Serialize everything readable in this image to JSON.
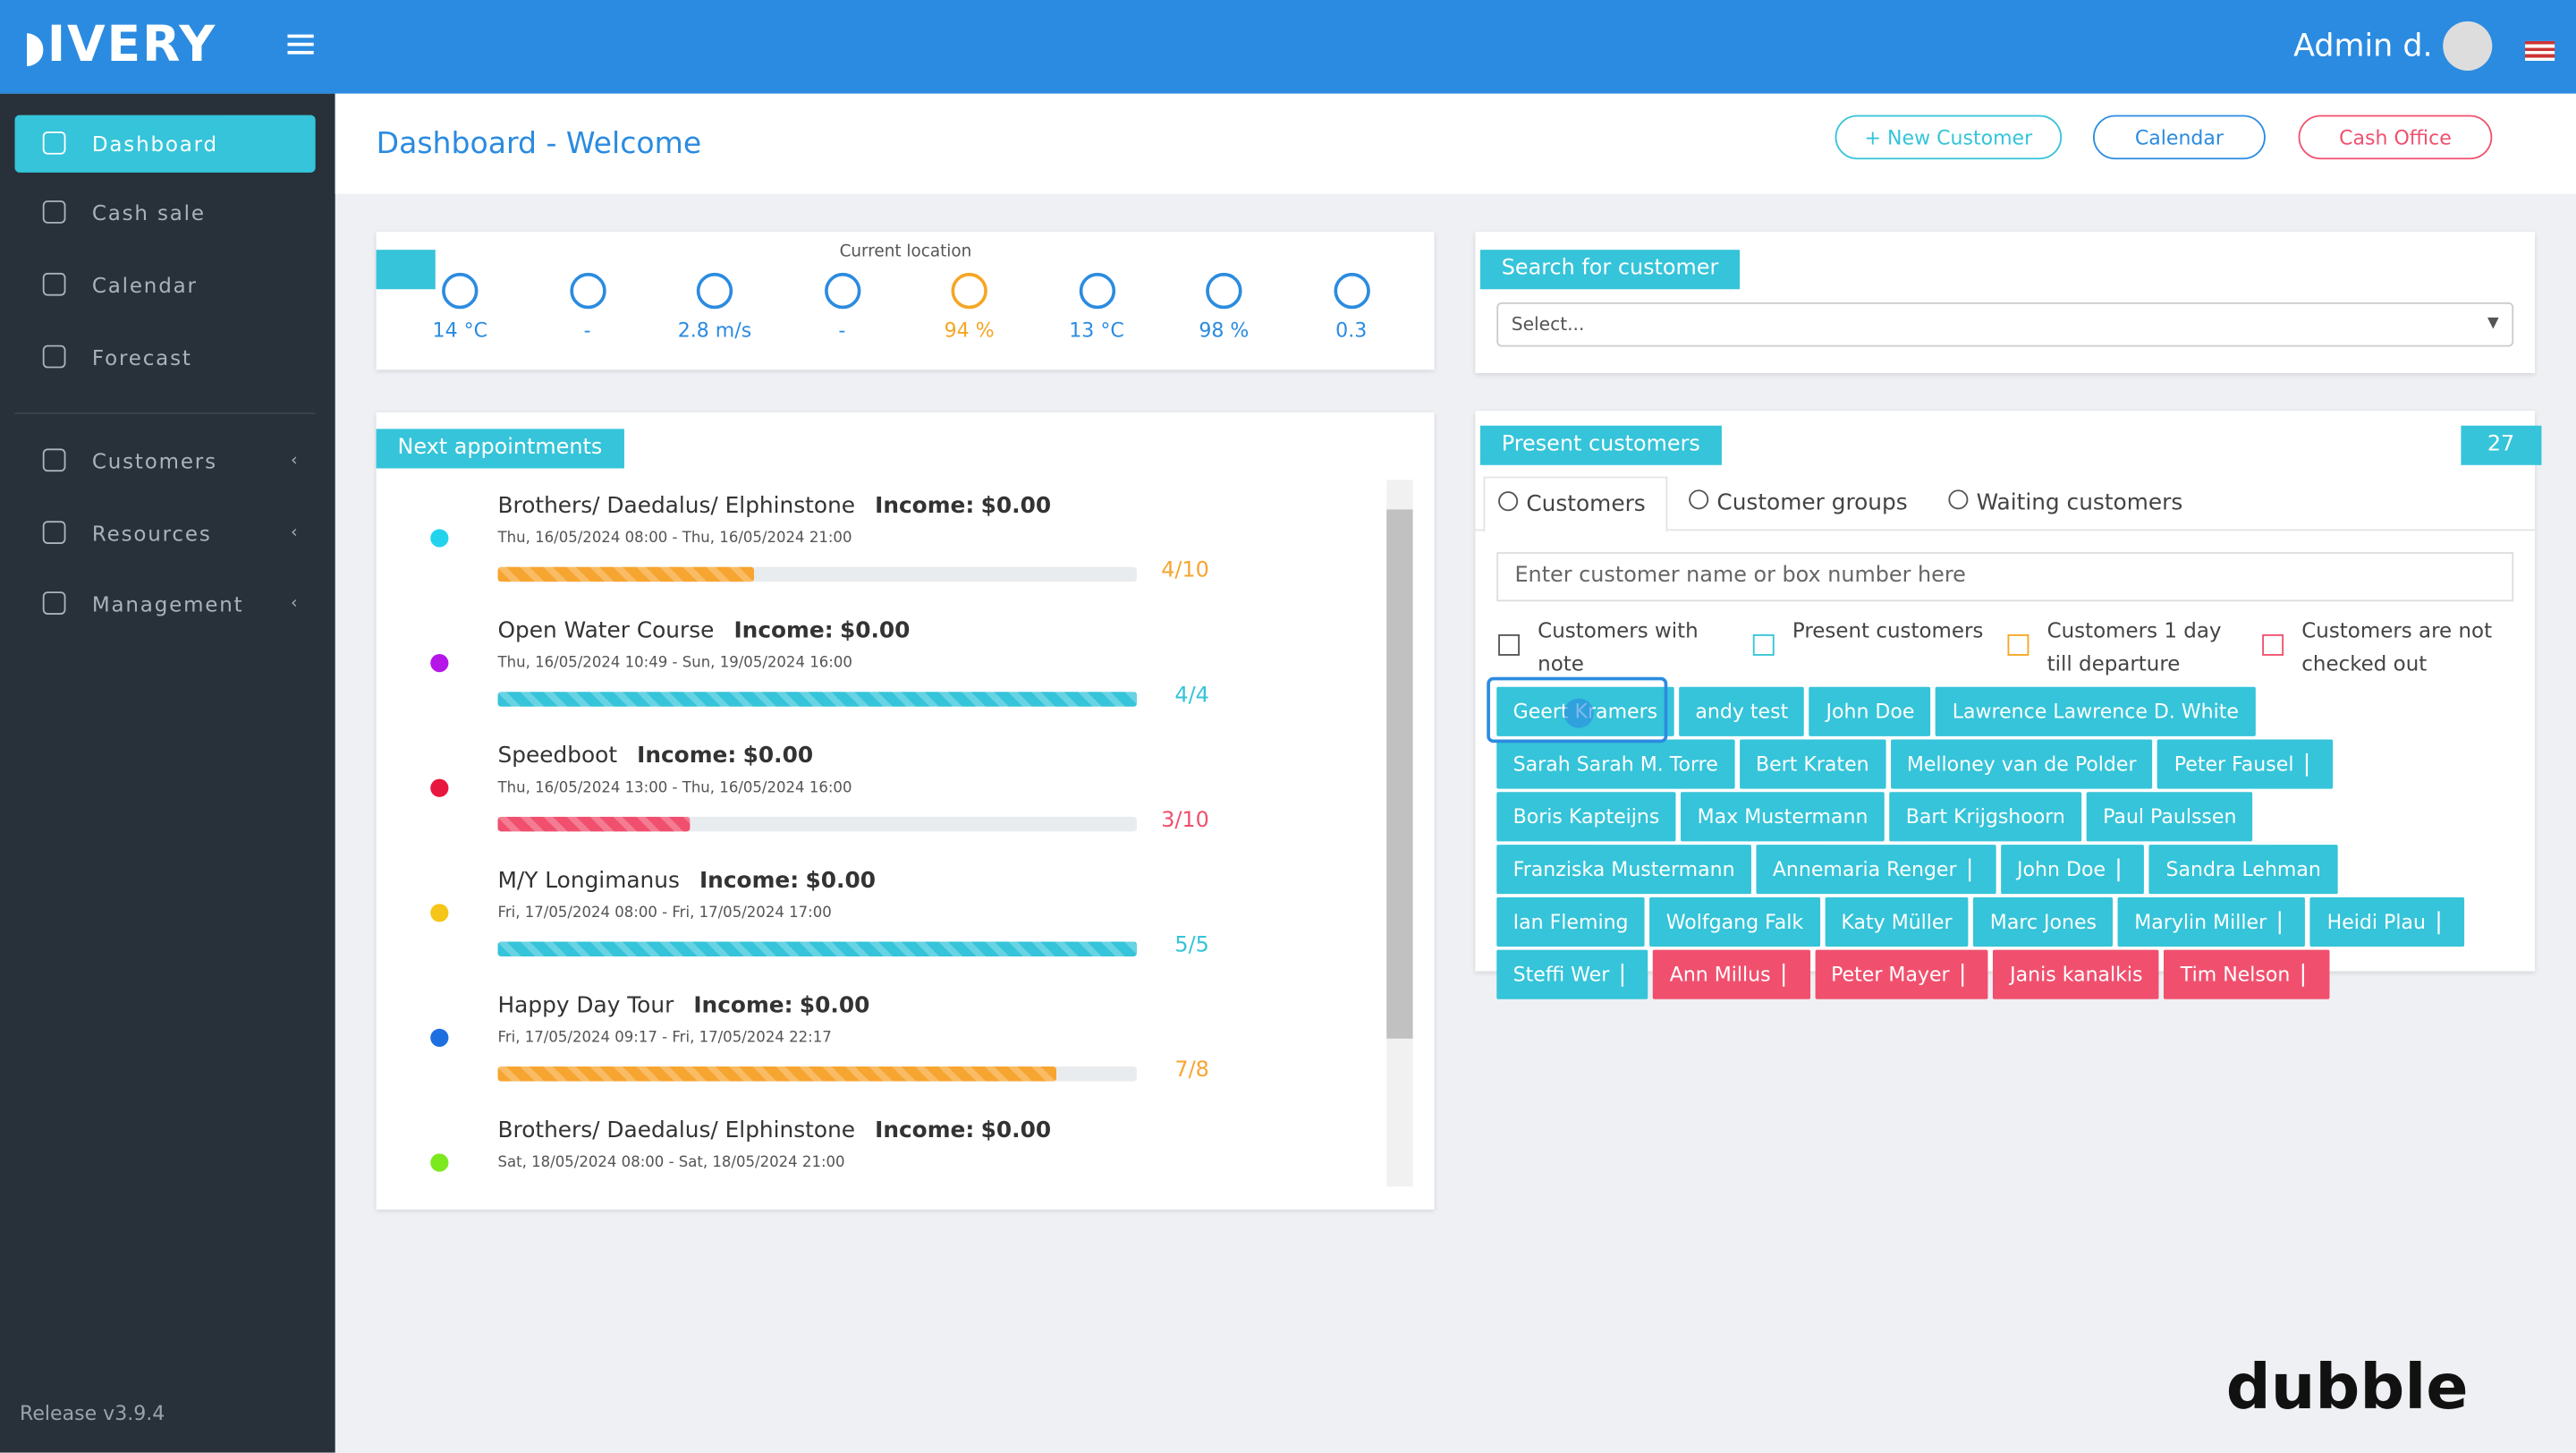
{
  "header": {
    "brand": "IVERY",
    "user": "Admin d."
  },
  "sidebar": {
    "items": [
      {
        "label": "Dashboard",
        "active": true
      },
      {
        "label": "Cash sale"
      },
      {
        "label": "Calendar"
      },
      {
        "label": "Forecast"
      },
      {
        "label": "Customers",
        "submenu": true
      },
      {
        "label": "Resources",
        "submenu": true
      },
      {
        "label": "Management",
        "submenu": true
      }
    ],
    "release": "Release v3.9.4"
  },
  "page": {
    "title": "Dashboard - Welcome",
    "buttons": [
      {
        "label": "+ New Customer",
        "color": "#35c4d9"
      },
      {
        "label": "Calendar",
        "color": "#2b8be0"
      },
      {
        "label": "Cash Office",
        "color": "#f0506e"
      }
    ]
  },
  "weather": {
    "caption": "Current location",
    "items": [
      {
        "text": "14 °C",
        "color": "#2b8be0"
      },
      {
        "text": "-",
        "color": "#2b8be0"
      },
      {
        "text": "2.8 m/s",
        "color": "#2b8be0"
      },
      {
        "text": "-",
        "color": "#2b8be0"
      },
      {
        "text": "94 %",
        "color": "#f5a623"
      },
      {
        "text": "13 °C",
        "color": "#2b8be0"
      },
      {
        "text": "98 %",
        "color": "#2b8be0"
      },
      {
        "text": "0.3",
        "color": "#2b8be0"
      }
    ]
  },
  "appointments": {
    "title": "Next appointments",
    "income_label": "Income:",
    "items": [
      {
        "name": "Brothers/ Daedalus/ Elphinstone",
        "income": "$0.00",
        "dates": "Thu, 16/05/2024 08:00 - Thu, 16/05/2024 21:00",
        "progress": "4/10",
        "dot": "#22d3ee",
        "bar": "#f7a531"
      },
      {
        "name": "Open Water Course",
        "income": "$0.00",
        "dates": "Thu, 16/05/2024 10:49 - Sun, 19/05/2024 16:00",
        "progress": "4/4",
        "dot": "#b517e8",
        "bar": "#35c4d9"
      },
      {
        "name": "Speedboot",
        "income": "$0.00",
        "dates": "Thu, 16/05/2024 13:00 - Thu, 16/05/2024 16:00",
        "progress": "3/10",
        "dot": "#e8173f",
        "bar": "#f0506e"
      },
      {
        "name": "M/Y Longimanus",
        "income": "$0.00",
        "dates": "Fri, 17/05/2024 08:00 - Fri, 17/05/2024 17:00",
        "progress": "5/5",
        "dot": "#f5c518",
        "bar": "#35c4d9"
      },
      {
        "name": "Happy Day Tour",
        "income": "$0.00",
        "dates": "Fri, 17/05/2024 09:17 - Fri, 17/05/2024 22:17",
        "progress": "7/8",
        "dot": "#1e6fe0",
        "bar": "#f7a531"
      },
      {
        "name": "Brothers/ Daedalus/ Elphinstone",
        "income": "$0.00",
        "dates": "Sat, 18/05/2024 08:00 - Sat, 18/05/2024 21:00",
        "dot": "#7ce81e"
      }
    ]
  },
  "search": {
    "title": "Search for customer",
    "placeholder": "Select..."
  },
  "present": {
    "title": "Present customers",
    "count": "27",
    "tabs": [
      "Customers",
      "Customer groups",
      "Waiting customers"
    ],
    "placeholder": "Enter customer name or box number here",
    "filters": [
      {
        "label": "Customers with note",
        "color": "#555"
      },
      {
        "label": "Present customers",
        "color": "#35c4d9"
      },
      {
        "label": "Customers 1 day till departure",
        "color": "#f5a623"
      },
      {
        "label": "Customers are not checked out",
        "color": "#f0506e"
      }
    ],
    "customers": [
      {
        "name": "Geert Kramers"
      },
      {
        "name": "andy test"
      },
      {
        "name": "John Doe"
      },
      {
        "name": "Lawrence Lawrence D. White"
      },
      {
        "name": "Sarah Sarah M. Torre"
      },
      {
        "name": "Bert Kraten"
      },
      {
        "name": "Melloney van de Polder"
      },
      {
        "name": "Peter Fausel",
        "flag": true
      },
      {
        "name": "Boris Kapteijns"
      },
      {
        "name": "Max Mustermann"
      },
      {
        "name": "Bart Krijgshoorn"
      },
      {
        "name": "Paul Paulssen"
      },
      {
        "name": "Franziska Mustermann"
      },
      {
        "name": "Annemaria Renger",
        "flag": true
      },
      {
        "name": "John Doe",
        "flag": true
      },
      {
        "name": "Sandra Lehman"
      },
      {
        "name": "Ian Fleming"
      },
      {
        "name": "Wolfgang Falk"
      },
      {
        "name": "Katy Müller"
      },
      {
        "name": "Marc Jones"
      },
      {
        "name": "Marylin Miller",
        "flag": true
      },
      {
        "name": "Heidi Plau",
        "flag": true
      },
      {
        "name": "Steffi Wer",
        "flag": true
      },
      {
        "name": "Ann Millus",
        "flag": true,
        "alert": true
      },
      {
        "name": "Peter Mayer",
        "flag": true,
        "alert": true
      },
      {
        "name": "Janis kanalkis",
        "alert": true
      },
      {
        "name": "Tim Nelson",
        "flag": true,
        "alert": true
      }
    ]
  },
  "watermark": "dubble"
}
